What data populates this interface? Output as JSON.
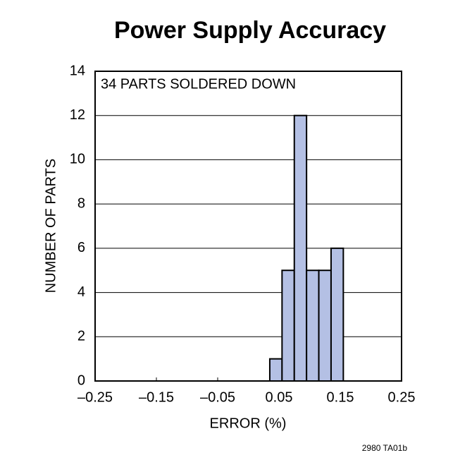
{
  "chart_data": {
    "type": "histogram",
    "title": "Power Supply Accuracy",
    "annotation": "34 PARTS SOLDERED DOWN",
    "xlabel": "ERROR (%)",
    "ylabel": "NUMBER OF PARTS",
    "bins": [
      0.035,
      0.055,
      0.075,
      0.095,
      0.115,
      0.135,
      0.155
    ],
    "counts": [
      1,
      5,
      12,
      5,
      5,
      6
    ],
    "color": "#b4c0e4",
    "edgecolor": "#000000",
    "xlim": [
      -0.25,
      0.25
    ],
    "xticks": [
      {
        "value": -0.25,
        "label": "–0.25"
      },
      {
        "value": -0.15,
        "label": "–0.15"
      },
      {
        "value": -0.05,
        "label": "–0.05"
      },
      0.05,
      0.15,
      0.25
    ],
    "ylim": [
      0,
      14
    ],
    "yticks": [
      0,
      2,
      4,
      6,
      8,
      10,
      12,
      14
    ],
    "grid": true,
    "footnote": "2980 TA01b"
  }
}
